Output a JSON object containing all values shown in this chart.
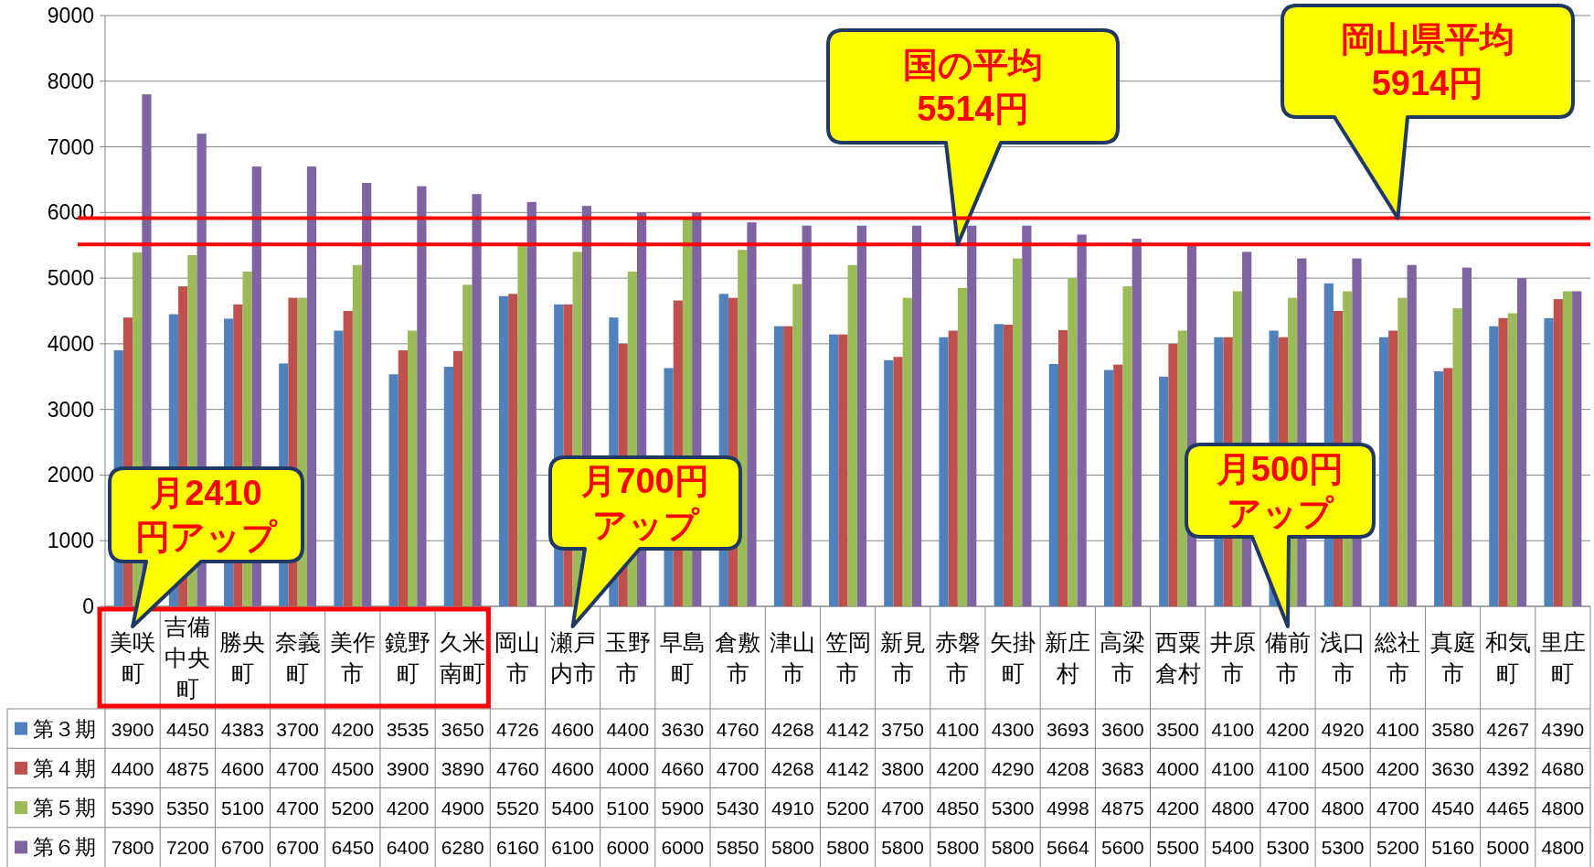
{
  "chart_data": {
    "type": "bar",
    "categories": [
      "美咲町",
      "吉備中央町",
      "勝央町",
      "奈義町",
      "美作市",
      "鏡野町",
      "久米南町",
      "岡山市",
      "瀬戸内市",
      "玉野市",
      "早島町",
      "倉敷市",
      "津山市",
      "笠岡市",
      "新見市",
      "赤磐市",
      "矢掛町",
      "新庄村",
      "高梁市",
      "西粟倉村",
      "井原市",
      "備前市",
      "浅口市",
      "総社市",
      "真庭市",
      "和気町",
      "里庄町"
    ],
    "series": [
      {
        "name": "第３期",
        "color": "#4f81bd",
        "values": [
          3900,
          4450,
          4383,
          3700,
          4200,
          3535,
          3650,
          4726,
          4600,
          4400,
          3630,
          4760,
          4268,
          4142,
          3750,
          4100,
          4300,
          3693,
          3600,
          3500,
          4100,
          4200,
          4920,
          4100,
          3580,
          4267,
          4390
        ]
      },
      {
        "name": "第４期",
        "color": "#c0504d",
        "values": [
          4400,
          4875,
          4600,
          4700,
          4500,
          3900,
          3890,
          4760,
          4600,
          4000,
          4660,
          4700,
          4268,
          4142,
          3800,
          4200,
          4290,
          4208,
          3683,
          4000,
          4100,
          4100,
          4500,
          4200,
          3630,
          4392,
          4680
        ]
      },
      {
        "name": "第５期",
        "color": "#9bbb59",
        "values": [
          5390,
          5350,
          5100,
          4700,
          5200,
          4200,
          4900,
          5520,
          5400,
          5100,
          5900,
          5430,
          4910,
          5200,
          4700,
          4850,
          5300,
          4998,
          4875,
          4200,
          4800,
          4700,
          4800,
          4700,
          4540,
          4465,
          4800
        ]
      },
      {
        "name": "第６期",
        "color": "#8064a2",
        "values": [
          7800,
          7200,
          6700,
          6700,
          6450,
          6400,
          6280,
          6160,
          6100,
          6000,
          6000,
          5850,
          5800,
          5800,
          5800,
          5800,
          5800,
          5664,
          5600,
          5500,
          5400,
          5300,
          5300,
          5200,
          5160,
          5000,
          4800
        ]
      }
    ],
    "ylim": [
      0,
      9000
    ],
    "yticks": [
      0,
      1000,
      2000,
      3000,
      4000,
      5000,
      6000,
      7000,
      8000,
      9000
    ],
    "grid": "y",
    "legend": "bottom",
    "data_labels": true,
    "ref_lines": [
      {
        "axis": "y",
        "value": 5514,
        "label": "国の平均5514円",
        "color": "#ff0000"
      },
      {
        "axis": "y",
        "value": 5914,
        "label": "岡山県平均5914円",
        "color": "#ff0000"
      }
    ],
    "annotations": [
      {
        "text": "月2410円アップ",
        "x": "美咲町"
      },
      {
        "text": "月700円アップ",
        "x": "瀬戸内市"
      },
      {
        "text": "月500円アップ",
        "x": "備前市"
      }
    ]
  }
}
